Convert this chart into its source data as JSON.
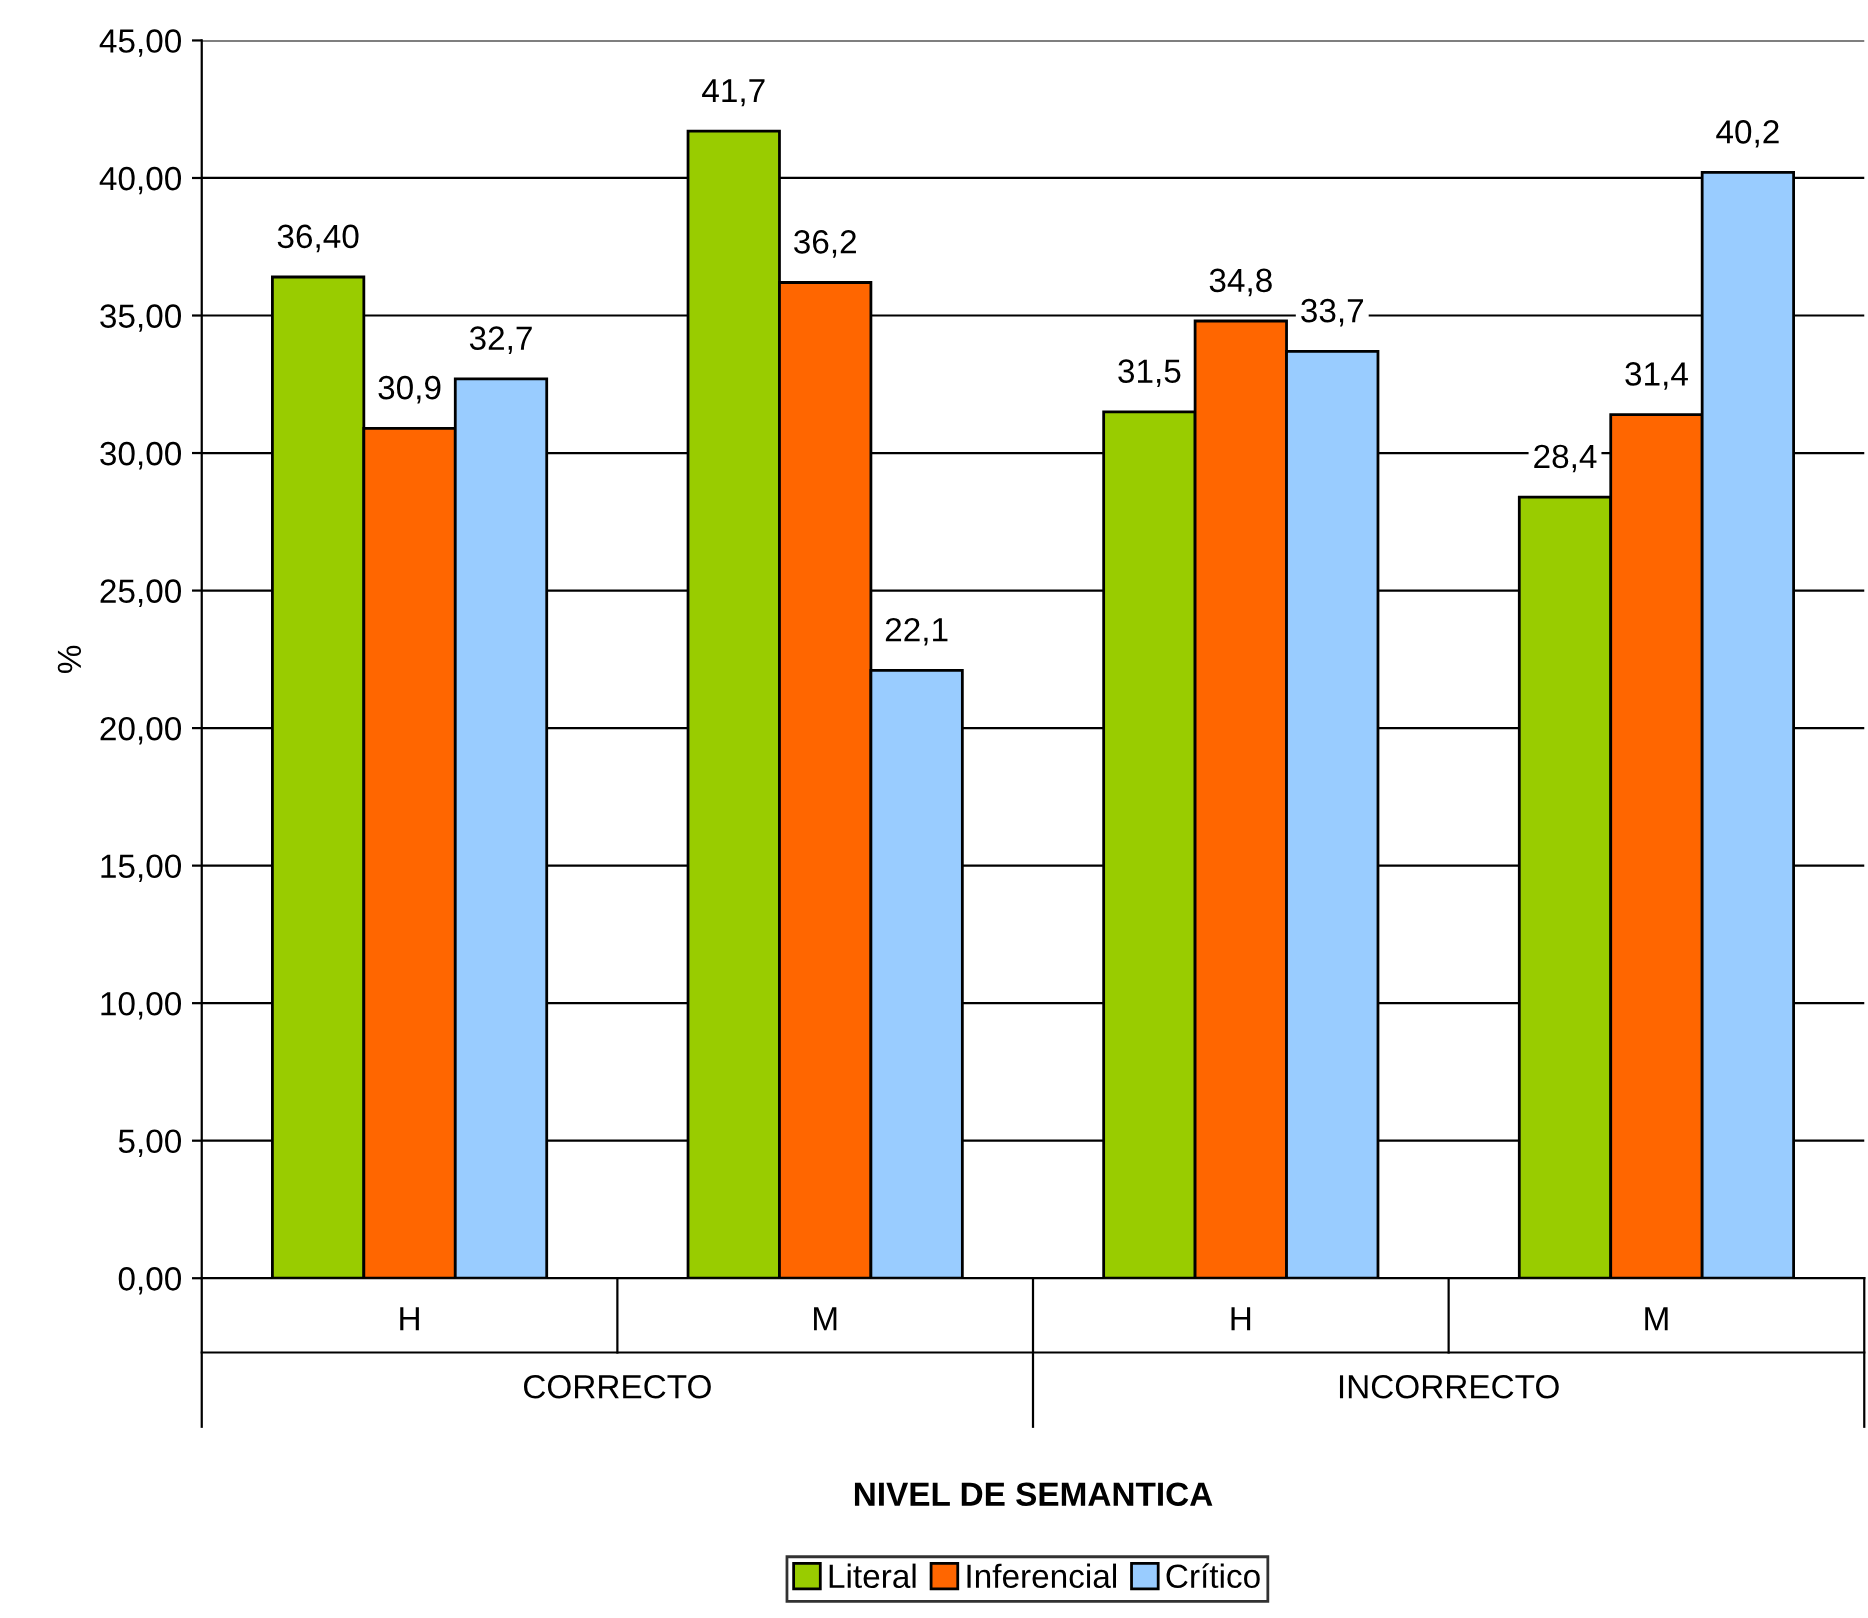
{
  "chart_data": {
    "type": "bar",
    "xlabel": "NIVEL DE SEMANTICA",
    "ylabel": "%",
    "categories": [
      "H",
      "M",
      "H",
      "M"
    ],
    "annotations": [
      "CORRECTO",
      "INCORRECTO"
    ],
    "series": [
      {
        "name": "Literal",
        "color": "#99cc00",
        "values": [
          36.4,
          41.7,
          31.5,
          28.4
        ],
        "value_labels": [
          "36,40",
          "41,7",
          "31,5",
          "28,4"
        ]
      },
      {
        "name": "Inferencial",
        "color": "#ff6600",
        "values": [
          30.9,
          36.2,
          34.8,
          31.4
        ],
        "value_labels": [
          "30,9",
          "36,2",
          "34,8",
          "31,4"
        ]
      },
      {
        "name": "Crítico",
        "color": "#99ccff",
        "values": [
          32.7,
          22.1,
          33.7,
          40.2
        ],
        "value_labels": [
          "32,7",
          "22,1",
          "33,7",
          "40,2"
        ]
      }
    ],
    "ylim": [
      0,
      45
    ],
    "yticks": [
      {
        "value": 0,
        "label": "0,00"
      },
      {
        "value": 5,
        "label": "5,00"
      },
      {
        "value": 10,
        "label": "10,00"
      },
      {
        "value": 15,
        "label": "15,00"
      },
      {
        "value": 20,
        "label": "20,00"
      },
      {
        "value": 25,
        "label": "25,00"
      },
      {
        "value": 30,
        "label": "30,00"
      },
      {
        "value": 35,
        "label": "35,00"
      },
      {
        "value": 40,
        "label": "40,00"
      },
      {
        "value": 45,
        "label": "45,00"
      }
    ],
    "grid": "y",
    "legend": "bottom"
  }
}
